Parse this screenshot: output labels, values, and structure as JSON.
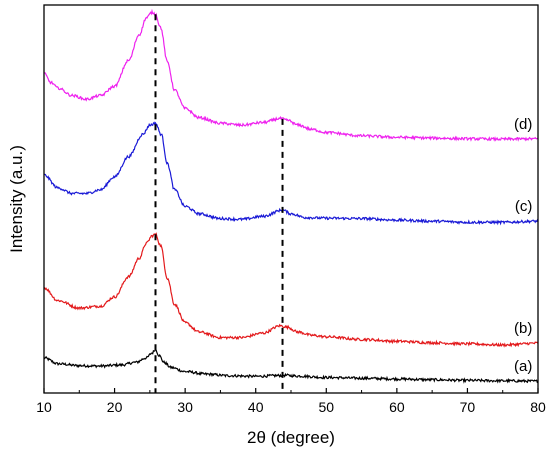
{
  "chart_data": {
    "type": "line",
    "xlabel": "2θ (degree)",
    "ylabel": "Intensity (a.u.)",
    "xlim": [
      10,
      80
    ],
    "xticks": [
      10,
      20,
      30,
      40,
      50,
      60,
      70,
      80
    ],
    "ylim": [
      0,
      105
    ],
    "yticks_shown": false,
    "grid": false,
    "legend": "none",
    "reference_lines": [
      {
        "x": 25.8,
        "style": "dashed",
        "color": "#000000"
      },
      {
        "x": 43.8,
        "style": "dashed",
        "color": "#000000"
      }
    ],
    "series": [
      {
        "label": "(a)",
        "color": "#000000",
        "x": [
          10,
          12,
          15,
          18,
          21,
          23,
          24.5,
          25.3,
          25.8,
          26.3,
          27,
          28,
          30,
          33,
          36,
          40,
          43,
          44,
          46,
          50,
          55,
          60,
          65,
          70,
          75,
          80
        ],
        "y": [
          9.5,
          7.9,
          7.4,
          7.3,
          7.6,
          8.3,
          9.5,
          10.8,
          11.8,
          10.2,
          8.3,
          6.9,
          5.8,
          5.1,
          4.7,
          4.5,
          4.7,
          4.8,
          4.6,
          4.2,
          4.0,
          3.8,
          3.6,
          3.4,
          3.3,
          3.2
        ]
      },
      {
        "label": "(b)",
        "color": "#e31a1c",
        "x": [
          10,
          12,
          15,
          18,
          20,
          22,
          23.5,
          24.5,
          25.3,
          25.8,
          26.5,
          27.5,
          28.5,
          30,
          32,
          35,
          38,
          41,
          43.5,
          44.5,
          46,
          48,
          50,
          55,
          60,
          65,
          70,
          75,
          80
        ],
        "y": [
          28.5,
          25,
          23,
          23.5,
          26,
          31.5,
          36.5,
          40.5,
          42.5,
          43,
          40,
          31,
          24,
          19,
          16.5,
          15,
          15,
          16.2,
          18.2,
          17.8,
          16.5,
          15.6,
          15.2,
          14.5,
          14,
          13.6,
          13.3,
          13.0,
          13.5
        ]
      },
      {
        "label": "(c)",
        "color": "#1a1ad6",
        "x": [
          10,
          12,
          14,
          16,
          18,
          20,
          22,
          24,
          25,
          25.8,
          26.6,
          27.5,
          28.5,
          30,
          32,
          35,
          38,
          41,
          43.8,
          45,
          47,
          50,
          55,
          60,
          65,
          70,
          75,
          80
        ],
        "y": [
          59,
          55.5,
          54,
          54,
          55,
          58.5,
          64,
          70,
          72.5,
          73,
          70,
          62,
          55,
          50.5,
          48.5,
          47.2,
          47,
          47.8,
          49.5,
          48.5,
          47.5,
          47.3,
          47.2,
          46.8,
          46.5,
          46.2,
          46.2,
          46.5
        ]
      },
      {
        "label": "(d)",
        "color": "#ee22ee",
        "x": [
          10,
          11,
          12,
          14,
          16,
          18,
          20,
          22,
          23.5,
          24.5,
          25.3,
          25.8,
          26.5,
          27.5,
          28.5,
          30,
          32,
          35,
          38,
          41,
          43.5,
          44.5,
          46,
          48,
          50,
          55,
          60,
          65,
          70,
          75,
          80
        ],
        "y": [
          86.5,
          84,
          82.5,
          80.5,
          79.5,
          80.5,
          83,
          90,
          97,
          101.5,
          103,
          102.5,
          99,
          89.5,
          82,
          77,
          74.5,
          73,
          72.5,
          73.2,
          74.3,
          73.8,
          72.5,
          71.3,
          70.5,
          69.6,
          69.2,
          69,
          68.8,
          68.7,
          68.8
        ]
      }
    ]
  }
}
